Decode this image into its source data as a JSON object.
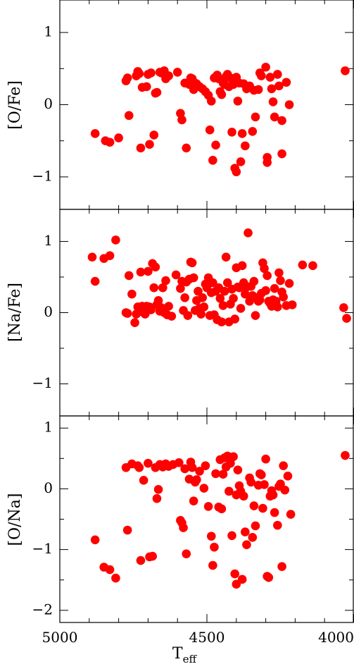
{
  "chart_data": [
    {
      "type": "scatter",
      "title": "",
      "xlabel": "",
      "ylabel": "[O/Fe]",
      "xlim": [
        5000,
        4000
      ],
      "ylim": [
        -1.45,
        1.45
      ],
      "yticks": [
        -1,
        0,
        1
      ],
      "ytick_labels": [
        "−1",
        "0",
        "1"
      ],
      "marker_color": "#ff0000",
      "points": [
        [
          4880,
          -0.4
        ],
        [
          4845,
          -0.5
        ],
        [
          4830,
          -0.52
        ],
        [
          4800,
          -0.46
        ],
        [
          4775,
          0.33
        ],
        [
          4770,
          0.37
        ],
        [
          4765,
          -0.15
        ],
        [
          4740,
          0.4
        ],
        [
          4735,
          0.46
        ],
        [
          4730,
          0.43
        ],
        [
          4725,
          -0.6
        ],
        [
          4720,
          0.24
        ],
        [
          4705,
          0.25
        ],
        [
          4700,
          0.42
        ],
        [
          4695,
          -0.55
        ],
        [
          4690,
          0.44
        ],
        [
          4680,
          -0.42
        ],
        [
          4675,
          0.16
        ],
        [
          4670,
          0.17
        ],
        [
          4660,
          0.45
        ],
        [
          4655,
          0.44
        ],
        [
          4645,
          0.47
        ],
        [
          4640,
          0.36
        ],
        [
          4630,
          0.4
        ],
        [
          4600,
          0.45
        ],
        [
          4590,
          -0.12
        ],
        [
          4585,
          -0.21
        ],
        [
          4575,
          0.3
        ],
        [
          4570,
          -0.6
        ],
        [
          4560,
          0.28
        ],
        [
          4555,
          0.37
        ],
        [
          4550,
          0.36
        ],
        [
          4545,
          0.21
        ],
        [
          4540,
          0.3
        ],
        [
          4535,
          0.29
        ],
        [
          4525,
          0.25
        ],
        [
          4515,
          0.22
        ],
        [
          4505,
          0.18
        ],
        [
          4495,
          0.13
        ],
        [
          4490,
          -0.35
        ],
        [
          4485,
          0.05
        ],
        [
          4480,
          -0.77
        ],
        [
          4475,
          0.37
        ],
        [
          4470,
          -0.56
        ],
        [
          4465,
          0.41
        ],
        [
          4460,
          0.36
        ],
        [
          4455,
          0.18
        ],
        [
          4450,
          0.14
        ],
        [
          4445,
          0.3
        ],
        [
          4440,
          0.28
        ],
        [
          4435,
          0.39
        ],
        [
          4430,
          0.42
        ],
        [
          4425,
          0.25
        ],
        [
          4420,
          0.37
        ],
        [
          4415,
          -0.38
        ],
        [
          4410,
          0.28
        ],
        [
          4405,
          -0.88
        ],
        [
          4400,
          -0.93
        ],
        [
          4400,
          0.38
        ],
        [
          4395,
          0.05
        ],
        [
          4390,
          0.3
        ],
        [
          4385,
          -0.79
        ],
        [
          4380,
          -0.4
        ],
        [
          4375,
          0.29
        ],
        [
          4370,
          -0.57
        ],
        [
          4365,
          0.22
        ],
        [
          4355,
          0.26
        ],
        [
          4345,
          -0.37
        ],
        [
          4340,
          0.2
        ],
        [
          4335,
          -0.17
        ],
        [
          4325,
          0.21
        ],
        [
          4320,
          0.44
        ],
        [
          4315,
          0.4
        ],
        [
          4300,
          0.52
        ],
        [
          4295,
          -0.73
        ],
        [
          4295,
          -0.8
        ],
        [
          4285,
          0.38
        ],
        [
          4280,
          0.22
        ],
        [
          4275,
          0.04
        ],
        [
          4270,
          -0.17
        ],
        [
          4260,
          0.42
        ],
        [
          4255,
          0.26
        ],
        [
          4245,
          -0.68
        ],
        [
          4245,
          -0.22
        ],
        [
          4230,
          0.31
        ],
        [
          4220,
          0.0
        ],
        [
          4030,
          0.47
        ]
      ]
    },
    {
      "type": "scatter",
      "title": "",
      "xlabel": "",
      "ylabel": "[Na/Fe]",
      "xlim": [
        5000,
        4000
      ],
      "ylim": [
        -1.45,
        1.45
      ],
      "yticks": [
        -1,
        0,
        1
      ],
      "ytick_labels": [
        "−1",
        "0",
        "1"
      ],
      "marker_color": "#ff0000",
      "points": [
        [
          4890,
          0.78
        ],
        [
          4880,
          0.44
        ],
        [
          4850,
          0.76
        ],
        [
          4830,
          0.8
        ],
        [
          4810,
          1.02
        ],
        [
          4775,
          0.0
        ],
        [
          4770,
          -0.01
        ],
        [
          4765,
          0.52
        ],
        [
          4755,
          0.26
        ],
        [
          4745,
          -0.14
        ],
        [
          4740,
          -0.02
        ],
        [
          4735,
          0.08
        ],
        [
          4730,
          0.04
        ],
        [
          4725,
          0.57
        ],
        [
          4720,
          0.09
        ],
        [
          4715,
          0.0
        ],
        [
          4710,
          -0.02
        ],
        [
          4705,
          0.09
        ],
        [
          4700,
          0.58
        ],
        [
          4695,
          0.08
        ],
        [
          4690,
          0.04
        ],
        [
          4685,
          0.69
        ],
        [
          4680,
          0.35
        ],
        [
          4675,
          0.64
        ],
        [
          4670,
          0.11
        ],
        [
          4665,
          0.17
        ],
        [
          4660,
          0.02
        ],
        [
          4655,
          0.07
        ],
        [
          4650,
          0.35
        ],
        [
          4645,
          0.0
        ],
        [
          4640,
          0.45
        ],
        [
          4635,
          -0.03
        ],
        [
          4630,
          0.09
        ],
        [
          4620,
          -0.05
        ],
        [
          4605,
          0.53
        ],
        [
          4590,
          0.34
        ],
        [
          4585,
          0.44
        ],
        [
          4580,
          0.03
        ],
        [
          4575,
          0.21
        ],
        [
          4570,
          0.43
        ],
        [
          4565,
          -0.04
        ],
        [
          4560,
          0.47
        ],
        [
          4555,
          0.71
        ],
        [
          4550,
          0.7
        ],
        [
          4545,
          0.49
        ],
        [
          4540,
          0.03
        ],
        [
          4535,
          0.17
        ],
        [
          4530,
          0.3
        ],
        [
          4525,
          0.06
        ],
        [
          4520,
          -0.02
        ],
        [
          4515,
          0.21
        ],
        [
          4510,
          0.08
        ],
        [
          4505,
          0.4
        ],
        [
          4500,
          0.35
        ],
        [
          4495,
          0.49
        ],
        [
          4490,
          -0.04
        ],
        [
          4485,
          0.28
        ],
        [
          4480,
          0.42
        ],
        [
          4475,
          -0.03
        ],
        [
          4470,
          0.3
        ],
        [
          4465,
          -0.1
        ],
        [
          4460,
          0.35
        ],
        [
          4455,
          0.2
        ],
        [
          4450,
          -0.13
        ],
        [
          4445,
          0.1
        ],
        [
          4440,
          0.3
        ],
        [
          4435,
          0.78
        ],
        [
          4430,
          0.42
        ],
        [
          4425,
          -0.13
        ],
        [
          4420,
          0.12
        ],
        [
          4415,
          0.33
        ],
        [
          4410,
          0.2
        ],
        [
          4405,
          -0.09
        ],
        [
          4400,
          0.63
        ],
        [
          4395,
          0.36
        ],
        [
          4390,
          0.35
        ],
        [
          4385,
          0.06
        ],
        [
          4380,
          0.66
        ],
        [
          4375,
          0.42
        ],
        [
          4370,
          0.26
        ],
        [
          4365,
          0.36
        ],
        [
          4360,
          1.12
        ],
        [
          4355,
          0.16
        ],
        [
          4350,
          0.37
        ],
        [
          4345,
          0.24
        ],
        [
          4340,
          0.44
        ],
        [
          4335,
          -0.04
        ],
        [
          4330,
          0.21
        ],
        [
          4325,
          0.16
        ],
        [
          4320,
          0.18
        ],
        [
          4315,
          0.27
        ],
        [
          4310,
          0.7
        ],
        [
          4305,
          0.62
        ],
        [
          4300,
          0.31
        ],
        [
          4295,
          0.52
        ],
        [
          4290,
          0.16
        ],
        [
          4285,
          0.13
        ],
        [
          4280,
          0.09
        ],
        [
          4275,
          0.18
        ],
        [
          4270,
          0.34
        ],
        [
          4265,
          0.16
        ],
        [
          4260,
          0.08
        ],
        [
          4255,
          0.56
        ],
        [
          4250,
          0.45
        ],
        [
          4245,
          0.29
        ],
        [
          4240,
          0.22
        ],
        [
          4230,
          0.1
        ],
        [
          4220,
          0.41
        ],
        [
          4210,
          0.11
        ],
        [
          4175,
          0.67
        ],
        [
          4140,
          0.66
        ],
        [
          4035,
          0.07
        ],
        [
          4025,
          -0.08
        ]
      ]
    },
    {
      "type": "scatter",
      "title": "",
      "xlabel": "T_eff",
      "ylabel": "[O/Na]",
      "xlim": [
        5000,
        4000
      ],
      "ylim": [
        -2.2,
        1.2
      ],
      "yticks": [
        -2,
        -1,
        0,
        1
      ],
      "ytick_labels": [
        "−2",
        "−1",
        "0",
        "1"
      ],
      "xticks": [
        5000,
        4500,
        4000
      ],
      "xtick_labels": [
        "5000",
        "4500",
        "4000"
      ],
      "marker_color": "#ff0000",
      "points": [
        [
          4880,
          -0.84
        ],
        [
          4850,
          -1.29
        ],
        [
          4830,
          -1.33
        ],
        [
          4810,
          -1.47
        ],
        [
          4775,
          0.35
        ],
        [
          4770,
          -0.68
        ],
        [
          4755,
          0.41
        ],
        [
          4735,
          0.38
        ],
        [
          4730,
          0.35
        ],
        [
          4725,
          -1.18
        ],
        [
          4715,
          0.14
        ],
        [
          4700,
          0.42
        ],
        [
          4695,
          -1.12
        ],
        [
          4685,
          -1.11
        ],
        [
          4675,
          0.35
        ],
        [
          4670,
          -0.16
        ],
        [
          4665,
          -0.01
        ],
        [
          4660,
          0.4
        ],
        [
          4650,
          0.36
        ],
        [
          4640,
          0.41
        ],
        [
          4630,
          0.37
        ],
        [
          4615,
          0.4
        ],
        [
          4595,
          0.43
        ],
        [
          4590,
          -0.52
        ],
        [
          4585,
          -0.56
        ],
        [
          4580,
          -0.64
        ],
        [
          4575,
          0.33
        ],
        [
          4570,
          -1.07
        ],
        [
          4560,
          0.16
        ],
        [
          4555,
          0.44
        ],
        [
          4550,
          0.35
        ],
        [
          4545,
          -0.2
        ],
        [
          4540,
          0.11
        ],
        [
          4535,
          0.15
        ],
        [
          4525,
          0.29
        ],
        [
          4510,
          0.01
        ],
        [
          4505,
          0.38
        ],
        [
          4495,
          -0.29
        ],
        [
          4485,
          -0.78
        ],
        [
          4480,
          -1.26
        ],
        [
          4475,
          -0.96
        ],
        [
          4470,
          0.25
        ],
        [
          4460,
          -0.3
        ],
        [
          4455,
          0.48
        ],
        [
          4450,
          -0.33
        ],
        [
          4445,
          0.24
        ],
        [
          4440,
          0.51
        ],
        [
          4435,
          0.36
        ],
        [
          4430,
          0.54
        ],
        [
          4425,
          -0.04
        ],
        [
          4420,
          0.42
        ],
        [
          4415,
          -0.77
        ],
        [
          4410,
          0.53
        ],
        [
          4405,
          -1.4
        ],
        [
          4400,
          -1.57
        ],
        [
          4400,
          -0.1
        ],
        [
          4395,
          0.31
        ],
        [
          4390,
          0.05
        ],
        [
          4385,
          -0.04
        ],
        [
          4380,
          -1.49
        ],
        [
          4375,
          -0.12
        ],
        [
          4370,
          -0.71
        ],
        [
          4365,
          -0.92
        ],
        [
          4355,
          0.18
        ],
        [
          4350,
          0.11
        ],
        [
          4345,
          -0.8
        ],
        [
          4340,
          -0.28
        ],
        [
          4335,
          -0.61
        ],
        [
          4325,
          0.06
        ],
        [
          4320,
          0.25
        ],
        [
          4315,
          0.23
        ],
        [
          4310,
          -0.32
        ],
        [
          4305,
          0.07
        ],
        [
          4300,
          0.49
        ],
        [
          4295,
          -1.44
        ],
        [
          4290,
          -1.46
        ],
        [
          4285,
          -0.12
        ],
        [
          4280,
          -0.03
        ],
        [
          4275,
          -0.1
        ],
        [
          4270,
          -0.39
        ],
        [
          4260,
          -0.6
        ],
        [
          4255,
          0.04
        ],
        [
          4250,
          0.08
        ],
        [
          4245,
          -1.28
        ],
        [
          4240,
          0.38
        ],
        [
          4235,
          -0.02
        ],
        [
          4225,
          0.21
        ],
        [
          4215,
          -0.42
        ],
        [
          4030,
          0.55
        ]
      ]
    }
  ]
}
